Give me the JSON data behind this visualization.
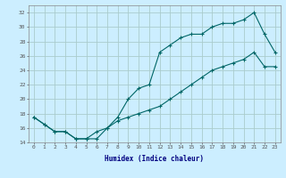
{
  "xlabel": "Humidex (Indice chaleur)",
  "x_upper": [
    0,
    1,
    2,
    3,
    4,
    5,
    6,
    7,
    8,
    9,
    10,
    11,
    12,
    13,
    14,
    15,
    16,
    17,
    18,
    19,
    20,
    21,
    22,
    23
  ],
  "y_upper": [
    17.5,
    16.5,
    15.5,
    15.5,
    14.5,
    14.5,
    14.5,
    16.0,
    17.5,
    20.0,
    21.5,
    22.0,
    26.5,
    27.5,
    28.5,
    29.0,
    29.0,
    30.0,
    30.5,
    30.5,
    31.0,
    32.0,
    29.0,
    26.5
  ],
  "x_lower": [
    0,
    1,
    2,
    3,
    4,
    5,
    6,
    7,
    8,
    9,
    10,
    11,
    12,
    13,
    14,
    15,
    16,
    17,
    18,
    19,
    20,
    21,
    22,
    23
  ],
  "y_lower": [
    17.5,
    16.5,
    15.5,
    15.5,
    14.5,
    14.5,
    15.5,
    16.0,
    17.0,
    17.5,
    18.0,
    18.5,
    19.0,
    20.0,
    21.0,
    22.0,
    23.0,
    24.0,
    24.5,
    25.0,
    25.5,
    26.5,
    24.5,
    24.5
  ],
  "line_color": "#006666",
  "bg_color": "#cceeff",
  "grid_color": "#aacccc",
  "ylim": [
    14,
    33
  ],
  "xlim": [
    -0.5,
    23.5
  ],
  "yticks": [
    14,
    16,
    18,
    20,
    22,
    24,
    26,
    28,
    30,
    32
  ],
  "xticks": [
    0,
    1,
    2,
    3,
    4,
    5,
    6,
    7,
    8,
    9,
    10,
    11,
    12,
    13,
    14,
    15,
    16,
    17,
    18,
    19,
    20,
    21,
    22,
    23
  ],
  "xlabel_color": "#000080",
  "tick_label_fontsize": 4.5,
  "xlabel_fontsize": 5.5
}
